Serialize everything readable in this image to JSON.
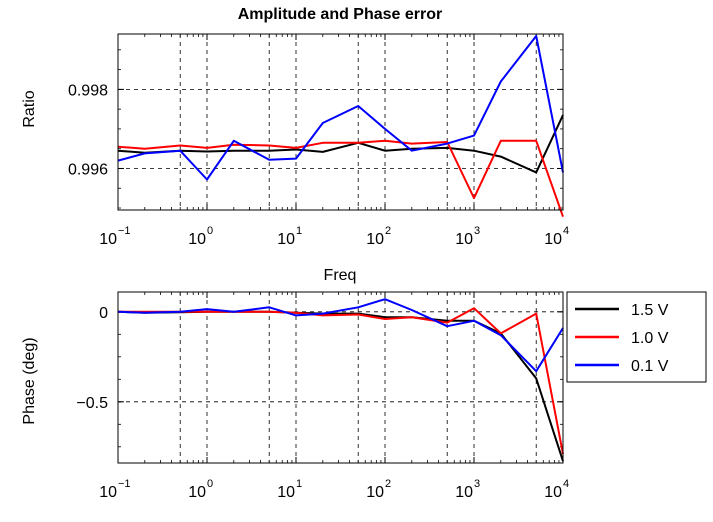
{
  "chart_data": [
    {
      "type": "line",
      "title": "Amplitude and Phase error",
      "xlabel": "Freq",
      "ylabel": "Ratio",
      "xscale": "log",
      "xlim": [
        0.1,
        10000
      ],
      "ylim": [
        0.99495,
        0.9994
      ],
      "yticks": [
        0.996,
        0.998
      ],
      "ytick_labels": [
        "0.996",
        "0.998"
      ],
      "xticks": [
        0.1,
        1,
        10,
        100,
        1000,
        10000
      ],
      "xtick_labels": [
        {
          "base": "10",
          "exp": "−1"
        },
        {
          "base": "10",
          "exp": "0"
        },
        {
          "base": "10",
          "exp": "1"
        },
        {
          "base": "10",
          "exp": "2"
        },
        {
          "base": "10",
          "exp": "3"
        },
        {
          "base": "10",
          "exp": "4"
        }
      ],
      "grid": true,
      "x": [
        0.1,
        0.2,
        0.5,
        1,
        2,
        5,
        10,
        20,
        50,
        100,
        200,
        500,
        1000,
        2000,
        5000,
        10000
      ],
      "series": [
        {
          "name": "1.5 V",
          "color": "#000000",
          "values": [
            0.99645,
            0.9964,
            0.99645,
            0.99643,
            0.99645,
            0.99645,
            0.99648,
            0.99642,
            0.99665,
            0.99645,
            0.9965,
            0.99652,
            0.99645,
            0.9963,
            0.9959,
            0.99735
          ]
        },
        {
          "name": "1.0 V",
          "color": "#ff0000",
          "values": [
            0.99655,
            0.9965,
            0.99658,
            0.99652,
            0.9966,
            0.99658,
            0.99652,
            0.99665,
            0.99665,
            0.9967,
            0.99663,
            0.99667,
            0.99525,
            0.9967,
            0.9967,
            0.99478
          ]
        },
        {
          "name": "0.1 V",
          "color": "#0000ff",
          "values": [
            0.9962,
            0.99638,
            0.99645,
            0.99572,
            0.9967,
            0.99622,
            0.99625,
            0.99715,
            0.99758,
            0.997,
            0.99645,
            0.99663,
            0.99683,
            0.9982,
            0.99935,
            0.9959
          ]
        }
      ]
    },
    {
      "type": "line",
      "title": "",
      "xlabel": "",
      "ylabel": "Phase (deg)",
      "xscale": "log",
      "xlim": [
        0.1,
        10000
      ],
      "ylim": [
        -0.84,
        0.11
      ],
      "yticks": [
        -0.5,
        0
      ],
      "ytick_labels": [
        "−0.5",
        "0"
      ],
      "xticks": [
        0.1,
        1,
        10,
        100,
        1000,
        10000
      ],
      "xtick_labels": [
        {
          "base": "10",
          "exp": "−1"
        },
        {
          "base": "10",
          "exp": "0"
        },
        {
          "base": "10",
          "exp": "1"
        },
        {
          "base": "10",
          "exp": "2"
        },
        {
          "base": "10",
          "exp": "3"
        },
        {
          "base": "10",
          "exp": "4"
        }
      ],
      "grid": true,
      "legend": "outside-right",
      "x": [
        0.1,
        0.2,
        0.5,
        1,
        2,
        5,
        10,
        20,
        50,
        100,
        200,
        500,
        1000,
        2000,
        5000,
        10000
      ],
      "series": [
        {
          "name": "1.5 V",
          "color": "#000000",
          "values": [
            0.0,
            -0.005,
            -0.003,
            0.0,
            0.0,
            0.0,
            -0.005,
            -0.01,
            -0.01,
            -0.03,
            -0.03,
            -0.05,
            -0.05,
            -0.12,
            -0.37,
            -0.83
          ]
        },
        {
          "name": "1.0 V",
          "color": "#ff0000",
          "values": [
            0.0,
            0.0,
            0.0,
            0.0,
            0.0,
            0.0,
            -0.005,
            -0.02,
            -0.015,
            -0.04,
            -0.03,
            -0.06,
            0.02,
            -0.12,
            -0.01,
            -0.79
          ]
        },
        {
          "name": "0.1 V",
          "color": "#0000ff",
          "values": [
            0.0,
            -0.005,
            0.0,
            0.015,
            0.0,
            0.025,
            -0.02,
            -0.01,
            0.025,
            0.07,
            0.01,
            -0.08,
            -0.05,
            -0.13,
            -0.33,
            -0.09
          ]
        }
      ]
    }
  ]
}
